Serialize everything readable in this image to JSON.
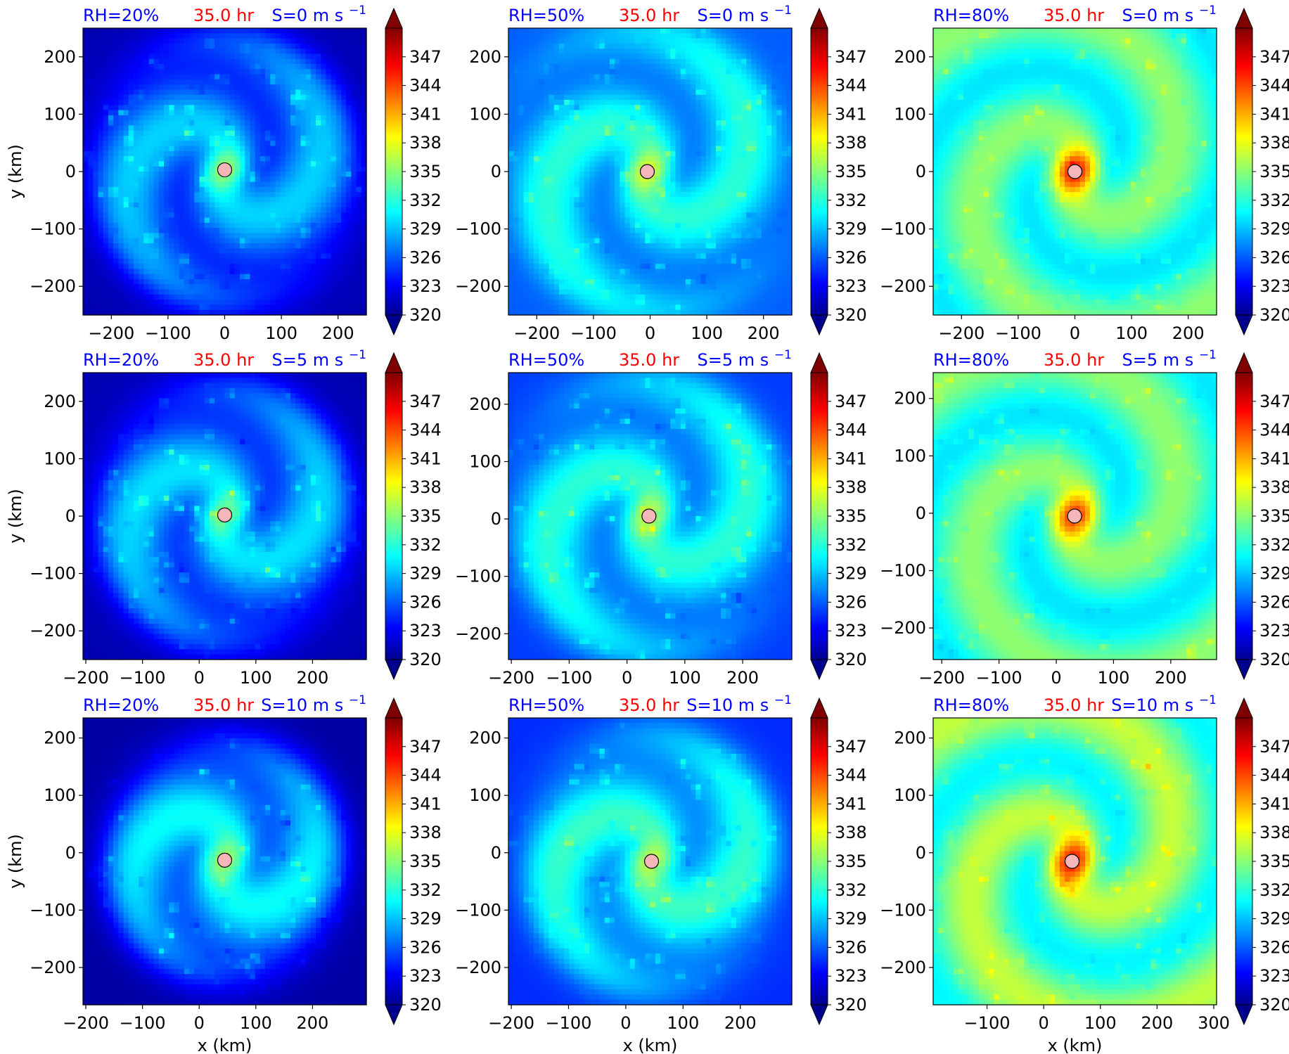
{
  "figure": {
    "time_label": "35.0 hr",
    "time_color": "#ff0000",
    "label_color": "#0000ff",
    "xlabel": "x (km)",
    "ylabel": "y (km)",
    "colormap": "jet",
    "center_marker_color": "#f4b6b8"
  },
  "colorbar": {
    "min": 320,
    "max": 350,
    "extend": "both",
    "ticks": [
      "347",
      "344",
      "341",
      "338",
      "335",
      "332",
      "329",
      "326",
      "323",
      "320"
    ]
  },
  "chart_data": [
    {
      "type": "heatmap",
      "rh_label": "RH=20%",
      "time_label": "35.0 hr",
      "shear_prefix": "S=0 m s",
      "shear_exp": "−1",
      "xticks": [
        "−200",
        "−100",
        "0",
        "100",
        "200"
      ],
      "yticks": [
        "200",
        "100",
        "0",
        "−100",
        "−200"
      ],
      "xlim": [
        -250,
        250
      ],
      "ylim": [
        -250,
        250
      ],
      "xtick_values": [
        -200,
        -100,
        0,
        100,
        200
      ],
      "ytick_values": [
        200,
        100,
        0,
        -100,
        -200
      ],
      "center": [
        0,
        3
      ],
      "field": {
        "base": 327.5,
        "bg": 321.5,
        "radius": 240,
        "core": 336,
        "spiral": 2.5,
        "noise": 4
      }
    },
    {
      "type": "heatmap",
      "rh_label": "RH=50%",
      "time_label": "35.0 hr",
      "shear_prefix": "S=0 m s",
      "shear_exp": "−1",
      "xticks": [
        "−200",
        "−100",
        "0",
        "100",
        "200"
      ],
      "yticks": [
        "200",
        "100",
        "0",
        "−100",
        "−200"
      ],
      "xlim": [
        -250,
        250
      ],
      "ylim": [
        -250,
        250
      ],
      "xtick_values": [
        -200,
        -100,
        0,
        100,
        200
      ],
      "ytick_values": [
        200,
        100,
        0,
        -100,
        -200
      ],
      "center": [
        -5,
        0
      ],
      "field": {
        "base": 330,
        "bg": 326.5,
        "radius": 260,
        "core": 338,
        "spiral": 2.5,
        "noise": 3.5
      }
    },
    {
      "type": "heatmap",
      "rh_label": "RH=80%",
      "time_label": "35.0 hr",
      "shear_prefix": "S=0 m s",
      "shear_exp": "−1",
      "xticks": [
        "−200",
        "−100",
        "0",
        "100",
        "200"
      ],
      "yticks": [
        "200",
        "100",
        "0",
        "−100",
        "−200"
      ],
      "xlim": [
        -250,
        250
      ],
      "ylim": [
        -250,
        250
      ],
      "xtick_values": [
        -200,
        -100,
        0,
        100,
        200
      ],
      "ytick_values": [
        200,
        100,
        0,
        -100,
        -200
      ],
      "center": [
        0,
        0
      ],
      "field": {
        "base": 333,
        "bg": 333,
        "radius": 400,
        "core": 346,
        "spiral": 2.5,
        "noise": 2.5
      }
    },
    {
      "type": "heatmap",
      "rh_label": "RH=20%",
      "time_label": "35.0 hr",
      "shear_prefix": "S=5 m s",
      "shear_exp": "−1",
      "xticks": [
        "−200",
        "−100",
        "0",
        "100",
        "200"
      ],
      "yticks": [
        "200",
        "100",
        "0",
        "−100",
        "−200"
      ],
      "xlim": [
        -205,
        295
      ],
      "ylim": [
        -250,
        250
      ],
      "xtick_values": [
        -200,
        -100,
        0,
        100,
        200
      ],
      "ytick_values": [
        200,
        100,
        0,
        -100,
        -200
      ],
      "center": [
        45,
        2
      ],
      "field": {
        "base": 328,
        "bg": 321.5,
        "radius": 230,
        "core": 335,
        "spiral": 2.5,
        "noise": 4
      }
    },
    {
      "type": "heatmap",
      "rh_label": "RH=50%",
      "time_label": "35.0 hr",
      "shear_prefix": "S=5 m s",
      "shear_exp": "−1",
      "xticks": [
        "−200",
        "−100",
        "0",
        "100",
        "200"
      ],
      "yticks": [
        "200",
        "100",
        "0",
        "−100",
        "−200"
      ],
      "xlim": [
        -205,
        285
      ],
      "ylim": [
        -245,
        255
      ],
      "xtick_values": [
        -200,
        -100,
        0,
        100,
        200
      ],
      "ytick_values": [
        200,
        100,
        0,
        -100,
        -200
      ],
      "center": [
        38,
        5
      ],
      "field": {
        "base": 330,
        "bg": 325.5,
        "radius": 250,
        "core": 337,
        "spiral": 2.5,
        "noise": 3.5
      }
    },
    {
      "type": "heatmap",
      "rh_label": "RH=80%",
      "time_label": "35.0 hr",
      "shear_prefix": "S=5 m s",
      "shear_exp": "−1",
      "xticks": [
        "−200",
        "−100",
        "0",
        "100",
        "200"
      ],
      "yticks": [
        "200",
        "100",
        "0",
        "−100",
        "−200"
      ],
      "xlim": [
        -215,
        280
      ],
      "ylim": [
        -255,
        245
      ],
      "xtick_values": [
        -200,
        -100,
        0,
        100,
        200
      ],
      "ytick_values": [
        200,
        100,
        0,
        -100,
        -200
      ],
      "center": [
        32,
        -5
      ],
      "field": {
        "base": 333,
        "bg": 333,
        "radius": 400,
        "core": 345,
        "spiral": 2.5,
        "noise": 2.5
      }
    },
    {
      "type": "heatmap",
      "rh_label": "RH=20%",
      "time_label": "35.0 hr",
      "shear_prefix": "S=10 m s",
      "shear_exp": "−1",
      "xticks": [
        "−200",
        "−100",
        "0",
        "100",
        "200"
      ],
      "yticks": [
        "200",
        "100",
        "0",
        "−100",
        "−200"
      ],
      "xlim": [
        -205,
        295
      ],
      "ylim": [
        -265,
        235
      ],
      "xtick_values": [
        -200,
        -100,
        0,
        100,
        200
      ],
      "ytick_values": [
        200,
        100,
        0,
        -100,
        -200
      ],
      "center": [
        45,
        -13
      ],
      "field": {
        "base": 329,
        "bg": 321,
        "radius": 210,
        "core": 336,
        "spiral": 2.5,
        "noise": 4
      }
    },
    {
      "type": "heatmap",
      "rh_label": "RH=50%",
      "time_label": "35.0 hr",
      "shear_prefix": "S=10 m s",
      "shear_exp": "−1",
      "xticks": [
        "−200",
        "−100",
        "0",
        "100",
        "200"
      ],
      "yticks": [
        "200",
        "100",
        "0",
        "−100",
        "−200"
      ],
      "xlim": [
        -205,
        290
      ],
      "ylim": [
        -265,
        235
      ],
      "xtick_values": [
        -200,
        -100,
        0,
        100,
        200
      ],
      "ytick_values": [
        200,
        100,
        0,
        -100,
        -200
      ],
      "center": [
        45,
        -15
      ],
      "field": {
        "base": 330.5,
        "bg": 325,
        "radius": 230,
        "core": 337,
        "spiral": 2.5,
        "noise": 3.5
      }
    },
    {
      "type": "heatmap",
      "rh_label": "RH=80%",
      "time_label": "35.0 hr",
      "shear_prefix": "S=10 m s",
      "shear_exp": "−1",
      "xticks": [
        "−100",
        "0",
        "100",
        "200",
        "300"
      ],
      "yticks": [
        "200",
        "100",
        "0",
        "−100",
        "−200"
      ],
      "xlim": [
        -195,
        305
      ],
      "ylim": [
        -265,
        235
      ],
      "xtick_values": [
        -100,
        0,
        100,
        200,
        300
      ],
      "ytick_values": [
        200,
        100,
        0,
        -100,
        -200
      ],
      "center": [
        50,
        -15
      ],
      "field": {
        "base": 334,
        "bg": 333,
        "radius": 400,
        "core": 346,
        "spiral": 3,
        "noise": 2.5
      }
    }
  ]
}
